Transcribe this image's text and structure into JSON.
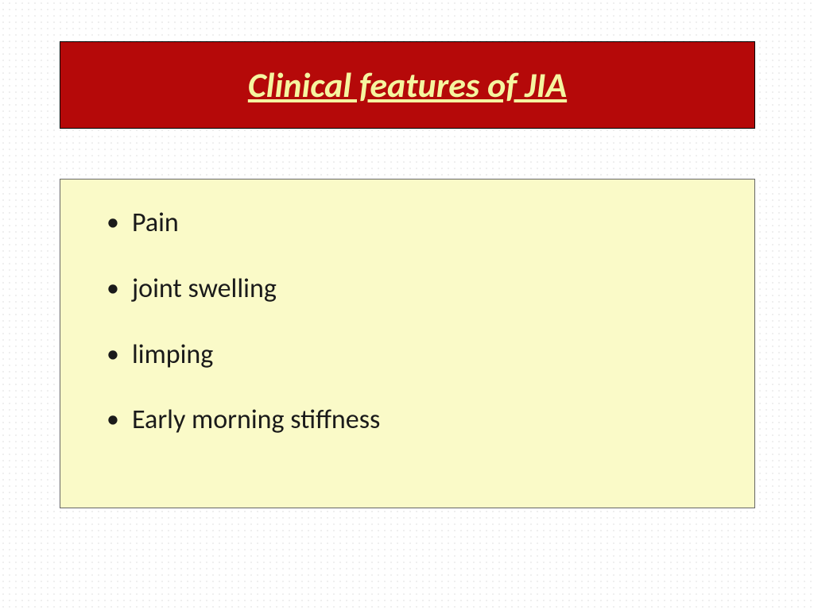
{
  "slide": {
    "title": {
      "text": "Clinical features of JIA",
      "color": "#f5f5a0",
      "background_color": "#b50909",
      "fontsize": 44,
      "font_weight": "bold",
      "font_style": "italic",
      "text_decoration": "underline"
    },
    "content": {
      "background_color": "#fafac8",
      "border_color": "#666666",
      "bullets": [
        {
          "text": "Pain",
          "color": "#1a1a1a",
          "fontsize": 34
        },
        {
          "text": "joint swelling",
          "color": "#1a1a1a",
          "fontsize": 34
        },
        {
          "text": "limping",
          "color": "#1a1a1a",
          "fontsize": 34
        },
        {
          "text": "Early morning stiffness",
          "color": "#1a1a1a",
          "fontsize": 34
        }
      ]
    },
    "background": {
      "base_color": "#ffffff",
      "dot_color": "#c0c0c0",
      "dot_spacing": 8
    }
  }
}
